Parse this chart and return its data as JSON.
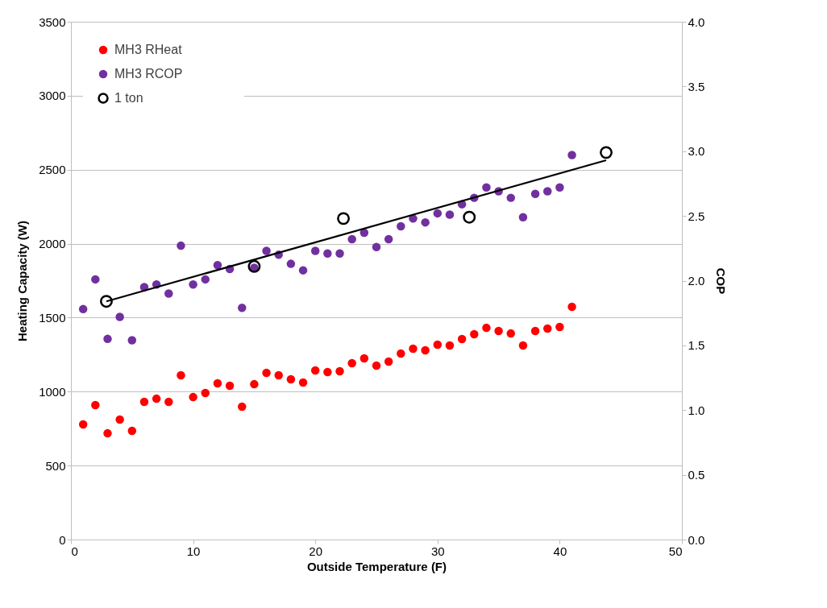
{
  "chart_data": {
    "type": "scatter",
    "xlabel": "Outside Temperature (F)",
    "ylabel": "Heating Capacity (W)",
    "y2label": "COP",
    "xlim": [
      0,
      50
    ],
    "xticks": [
      0,
      10,
      20,
      30,
      40,
      50
    ],
    "ylim": [
      0,
      3500
    ],
    "yticks": [
      0,
      500,
      1000,
      1500,
      2000,
      2500,
      3000,
      3500
    ],
    "y2lim": [
      0,
      4
    ],
    "y2ticks": [
      {
        "value": 0,
        "label": "0.0"
      },
      {
        "value": 0.5,
        "label": "0.5"
      },
      {
        "value": 1,
        "label": "1.0"
      },
      {
        "value": 1.5,
        "label": "1.5"
      },
      {
        "value": 2,
        "label": "2.0"
      },
      {
        "value": 2.5,
        "label": "2.5"
      },
      {
        "value": 3,
        "label": "3.0"
      },
      {
        "value": 3.5,
        "label": "3.5"
      },
      {
        "value": 4,
        "label": "4.0"
      }
    ],
    "grid": "y",
    "legend": "top left",
    "marker": "circle",
    "x": [
      1,
      2,
      3,
      4,
      5,
      6,
      7,
      8,
      9,
      10,
      11,
      12,
      13,
      14,
      15,
      16,
      17,
      18,
      19,
      20,
      21,
      22,
      23,
      24,
      25,
      26,
      27,
      28,
      29,
      30,
      31,
      32,
      33,
      34,
      35,
      36,
      37,
      38,
      39,
      40,
      41
    ],
    "series": [
      {
        "name": "MH3 RHeat",
        "color": "#ff0000",
        "values": [
          778,
          909,
          718,
          811,
          735,
          931,
          952,
          931,
          1110,
          963,
          991,
          1056,
          1040,
          898,
          1050,
          1127,
          1110,
          1083,
          1061,
          1143,
          1132,
          1138,
          1192,
          1225,
          1176,
          1203,
          1257,
          1290,
          1279,
          1317,
          1312,
          1355,
          1388,
          1431,
          1410,
          1393,
          1312,
          1410,
          1426,
          1437,
          1573
        ]
      },
      {
        "name": "MH3 RCOP",
        "color": "#7030a0",
        "axis": "y2",
        "values": [
          1.78,
          2.01,
          1.55,
          1.72,
          1.54,
          1.95,
          1.97,
          1.9,
          2.27,
          1.97,
          2.01,
          2.12,
          2.09,
          1.79,
          2.1,
          2.23,
          2.2,
          2.13,
          2.08,
          2.23,
          2.21,
          2.21,
          2.32,
          2.37,
          2.26,
          2.32,
          2.42,
          2.48,
          2.45,
          2.52,
          2.51,
          2.59,
          2.64,
          2.72,
          2.69,
          2.64,
          2.49,
          2.67,
          2.69,
          2.72,
          2.97
        ]
      },
      {
        "name": "1 ton",
        "color": "#000000",
        "axis": "y2",
        "x": [
          2.9,
          15,
          22.3,
          32.6,
          43.8
        ],
        "values": [
          1.84,
          2.11,
          2.48,
          2.49,
          2.99
        ]
      },
      {
        "type": "line",
        "color": "#000000",
        "axis": "y2",
        "line_style": "solid",
        "marker": "none",
        "x": [
          2.9,
          43.8
        ],
        "values": [
          1.84,
          2.93
        ]
      }
    ]
  }
}
